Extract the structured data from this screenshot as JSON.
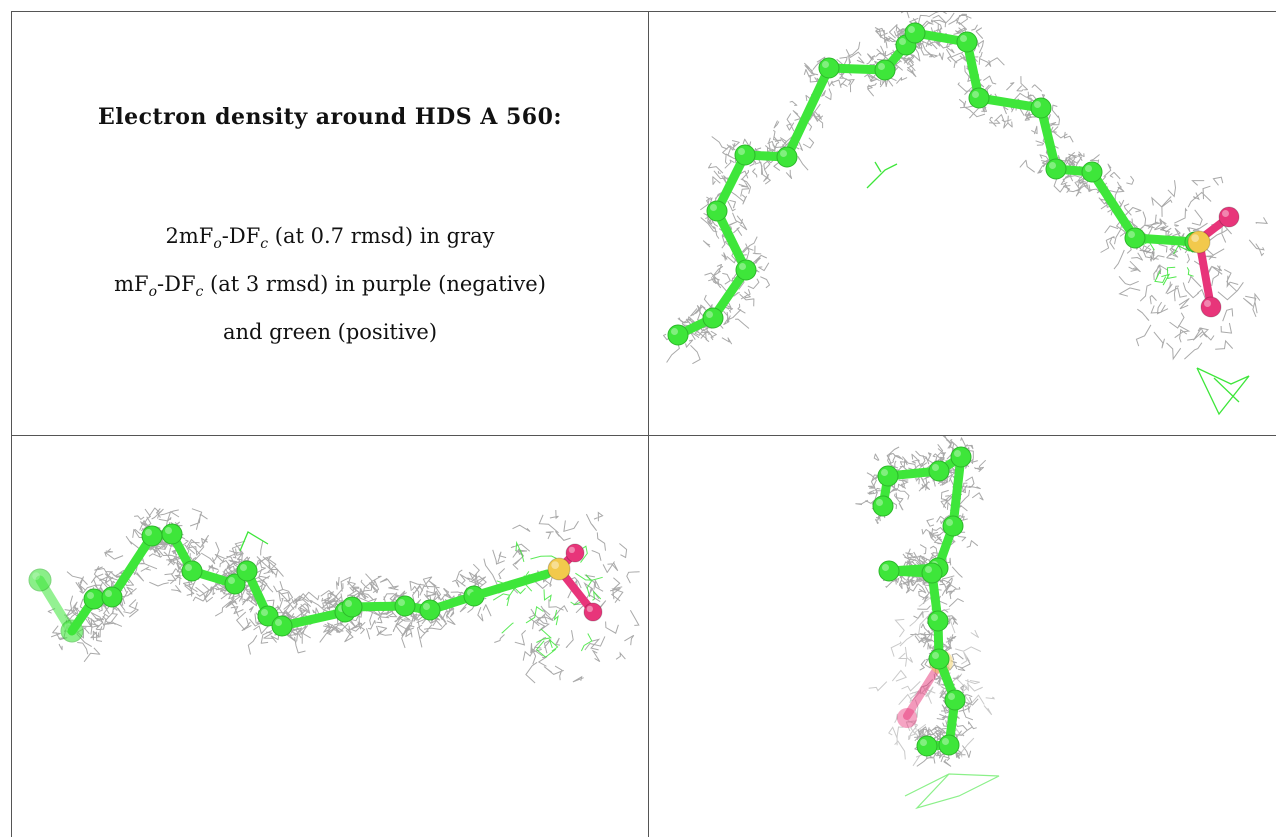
{
  "legend": {
    "title": "Electron density around HDS A 560:",
    "line1_pre": "2mF",
    "line1_sub1": "o",
    "line1_mid": "-DF",
    "line1_sub2": "c",
    "line1_post": " (at 0.7 rmsd) in gray",
    "line2_pre": "mF",
    "line2_sub1": "o",
    "line2_mid": "-DF",
    "line2_sub2": "c",
    "line2_post": " (at 3 rmsd) in purple (negative)",
    "line3": "and green (positive)"
  },
  "colors": {
    "carbon": "#3ee63a",
    "carbon_dark": "#2cb82a",
    "sulfur": "#f2c94c",
    "oxygen": "#e8357a",
    "mesh_gray": "#9a9a9a",
    "mesh_green": "#3ee63a",
    "grid": "#555555"
  },
  "panels": [
    {
      "name": "view-top-right"
    },
    {
      "name": "view-bottom-left"
    },
    {
      "name": "view-bottom-right"
    }
  ]
}
